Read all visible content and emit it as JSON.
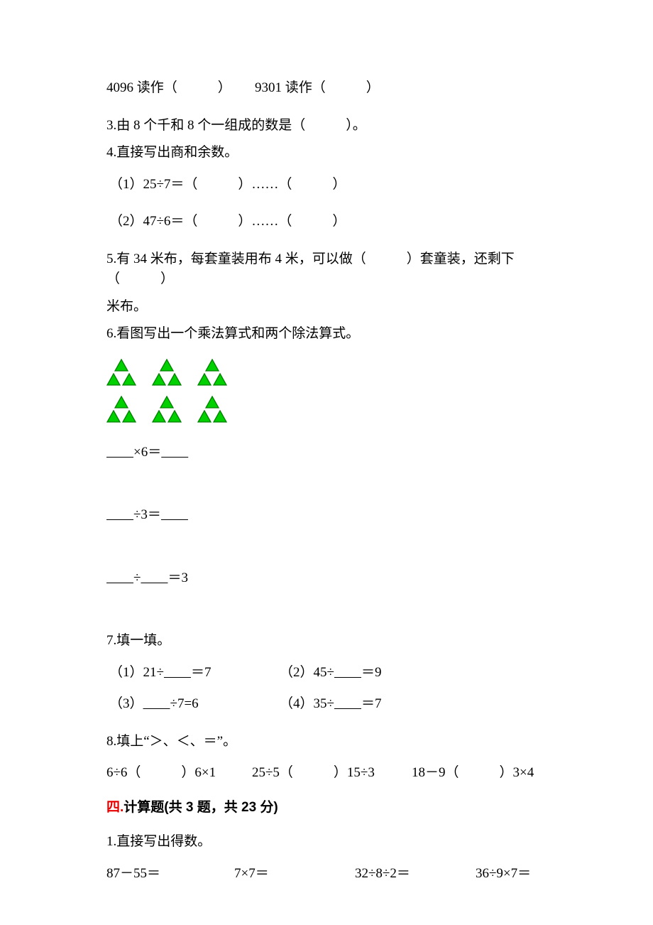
{
  "q_top": {
    "t1": "4096 读作（　　　）　　 9301 读作（　　　）"
  },
  "q3": "3.由 8 个千和 8 个一组成的数是（　　　）。",
  "q4": {
    "title": "4.直接写出商和余数。",
    "a": "（1）25÷7＝（　　　）……（　　　）",
    "b": "（2）47÷6＝（　　　）……（　　　）"
  },
  "q5": {
    "l1": "5.有 34 米布，每套童装用布 4 米，可以做（　　　）套童装，还剩下（　　　）",
    "l2": "米布。"
  },
  "q6": {
    "title": "6.看图写出一个乘法算式和两个除法算式。",
    "eq1_pre": "        ",
    "eq1_mid": "×6＝",
    "eq1_post": "        ",
    "eq2_pre": "        ",
    "eq2_mid": "÷3＝",
    "eq2_post": "        ",
    "eq3_pre": "        ",
    "eq3_mid": "÷",
    "eq3_post": "        ",
    "eq3_end": "＝3"
  },
  "q7": {
    "title": "7.填一填。",
    "a": "（1）21÷",
    "a_blank": "        ",
    "a_end": "＝7",
    "b": "（2）45÷",
    "b_blank": "        ",
    "b_end": "＝9",
    "c": "（3）",
    "c_blank": "        ",
    "c_end": "÷7=6",
    "d": "（4）35÷",
    "d_blank": "        ",
    "d_end": "＝7"
  },
  "q8": {
    "title": "8.填上“＞、＜、＝”。",
    "a": "6÷6（　　　）6×1",
    "b": "25÷5（　　　）15÷3",
    "c": "18－9（　　　）3×4"
  },
  "sec4": {
    "title_a": "四.",
    "title_b": "计算题(共 3 题，共 23 分)"
  },
  "c1": {
    "title": "1.直接写出得数。",
    "a": "87－55＝",
    "b": "7×7＝",
    "c": "32÷8÷2＝",
    "d": "36÷9×7＝"
  },
  "triangle": {
    "fill": "#00d000",
    "stroke": "#008000",
    "stroke_width": 1.3,
    "size": 20
  }
}
